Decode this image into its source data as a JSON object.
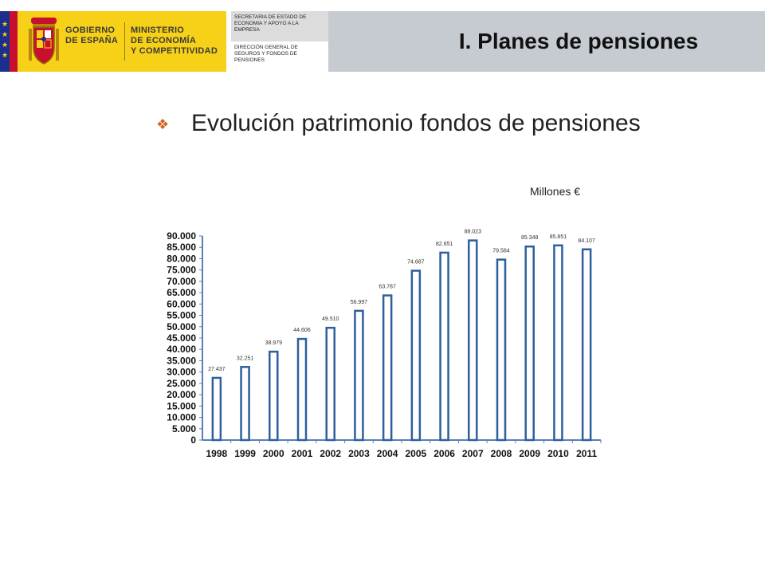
{
  "header": {
    "gobierno_line1": "GOBIERNO",
    "gobierno_line2": "DE ESPAÑA",
    "ministerio_line1": "MINISTERIO",
    "ministerio_line2": "DE ECONOMÍA",
    "ministerio_line3": "Y COMPETITIVIDAD",
    "secretaria": "SECRETARIA DE ESTADO DE ECONOMIA Y APOYO A LA EMPRESA",
    "direccion": "DIRECCIÓN GENERAL DE SEGUROS Y FONDOS DE PENSIONES",
    "section_title": "I. Planes de pensiones"
  },
  "subtitle": "Evolución patrimonio fondos de pensiones",
  "units": "Millones €",
  "colors": {
    "bar_fill": "#ffffff",
    "bar_border": "#2e5f9e",
    "axis": "#5a7fb5",
    "title_bar": "#c5cbd1",
    "brand_yellow": "#f7d117",
    "bullet": "#d4641a"
  },
  "chart_data": {
    "type": "bar",
    "categories": [
      "1998",
      "1999",
      "2000",
      "2001",
      "2002",
      "2003",
      "2004",
      "2005",
      "2006",
      "2007",
      "2008",
      "2009",
      "2010",
      "2011"
    ],
    "values": [
      27437,
      32251,
      38979,
      44606,
      49510,
      56997,
      63787,
      74687,
      82651,
      88023,
      79584,
      85348,
      85851,
      84107
    ],
    "data_labels": [
      "27.437",
      "32.251",
      "38.979",
      "44.606",
      "49.510",
      "56.997",
      "63.787",
      "74.687",
      "82.651",
      "88.023",
      "79.584",
      "85.348",
      "85.851",
      "84.107"
    ],
    "y_ticks": [
      0,
      5000,
      10000,
      15000,
      20000,
      25000,
      30000,
      35000,
      40000,
      45000,
      50000,
      55000,
      60000,
      65000,
      70000,
      75000,
      80000,
      85000,
      90000
    ],
    "y_tick_labels": [
      "0",
      "5.000",
      "10.000",
      "15.000",
      "20.000",
      "25.000",
      "30.000",
      "35.000",
      "40.000",
      "45.000",
      "50.000",
      "55.000",
      "60.000",
      "65.000",
      "70.000",
      "75.000",
      "80.000",
      "85.000",
      "90.000"
    ],
    "ylim": [
      0,
      90000
    ],
    "grid": false
  }
}
